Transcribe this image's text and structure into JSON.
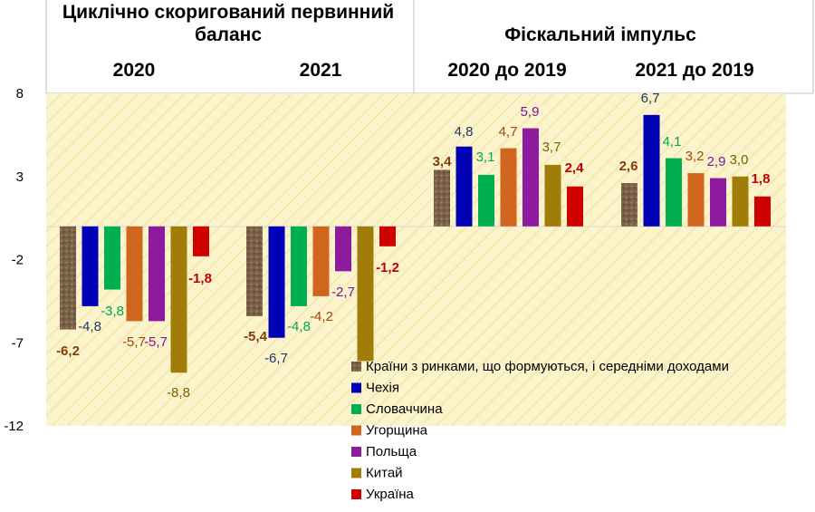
{
  "header": {
    "left_title_line1": "Циклічно скоригований первинний",
    "left_title_line2": "баланс",
    "right_title": "Фіскальний імпульс",
    "group_labels": [
      "2020",
      "2021",
      "2020 до 2019",
      "2021 до 2019"
    ]
  },
  "chart_data": {
    "type": "bar",
    "categories": [
      "2020",
      "2021",
      "2020 до 2019",
      "2021 до 2019"
    ],
    "ylim": [
      -12,
      8
    ],
    "yticks": [
      8,
      3,
      -2,
      -7,
      -12
    ],
    "grid": false,
    "legend_position": "bottom-right",
    "series": [
      {
        "name": "Країни з ринками, що формуються, і середніми доходами",
        "values": [
          -6.2,
          -5.4,
          3.4,
          2.6
        ],
        "labels": [
          "-6,2",
          "-5,4",
          "3,4",
          "2,6"
        ],
        "color": "#7a6148",
        "label_color": "#843c0c",
        "label_bold": true
      },
      {
        "name": "Чехія",
        "values": [
          -4.8,
          -6.7,
          4.8,
          6.7
        ],
        "labels": [
          "-4,8",
          "-6,7",
          "4,8",
          "6,7"
        ],
        "color": "#0000b4",
        "label_color": "#1f3864",
        "label_bold": false
      },
      {
        "name": "Словаччина",
        "values": [
          -3.8,
          -4.8,
          3.1,
          4.1
        ],
        "labels": [
          "-3,8",
          "-4,8",
          "3,1",
          "4,1"
        ],
        "color": "#00b050",
        "label_color": "#00a84f",
        "label_bold": false
      },
      {
        "name": "Угорщина",
        "values": [
          -5.7,
          -4.2,
          4.7,
          3.2
        ],
        "labels": [
          "-5,7",
          "-4,2",
          "4,7",
          "3,2"
        ],
        "color": "#d0651d",
        "label_color": "#9c4a10",
        "label_bold": false
      },
      {
        "name": "Польща",
        "values": [
          -5.7,
          -2.7,
          5.9,
          2.9
        ],
        "labels": [
          "-5,7",
          "-2,7",
          "5,9",
          "2,9"
        ],
        "color": "#8e1a9e",
        "label_color": "#7a1a8f",
        "label_bold": false
      },
      {
        "name": "Китай",
        "values": [
          -8.8,
          -8.1,
          3.7,
          3.0
        ],
        "labels": [
          "-8,8",
          "",
          "3,7",
          "3,0"
        ],
        "color": "#a07c08",
        "label_color": "#806000",
        "label_bold": false
      },
      {
        "name": "Україна",
        "values": [
          -1.8,
          -1.2,
          2.4,
          1.8
        ],
        "labels": [
          "-1,8",
          "-1,2",
          "2,4",
          "1,8"
        ],
        "color": "#d00000",
        "label_color": "#c00000",
        "label_bold": true
      }
    ]
  }
}
